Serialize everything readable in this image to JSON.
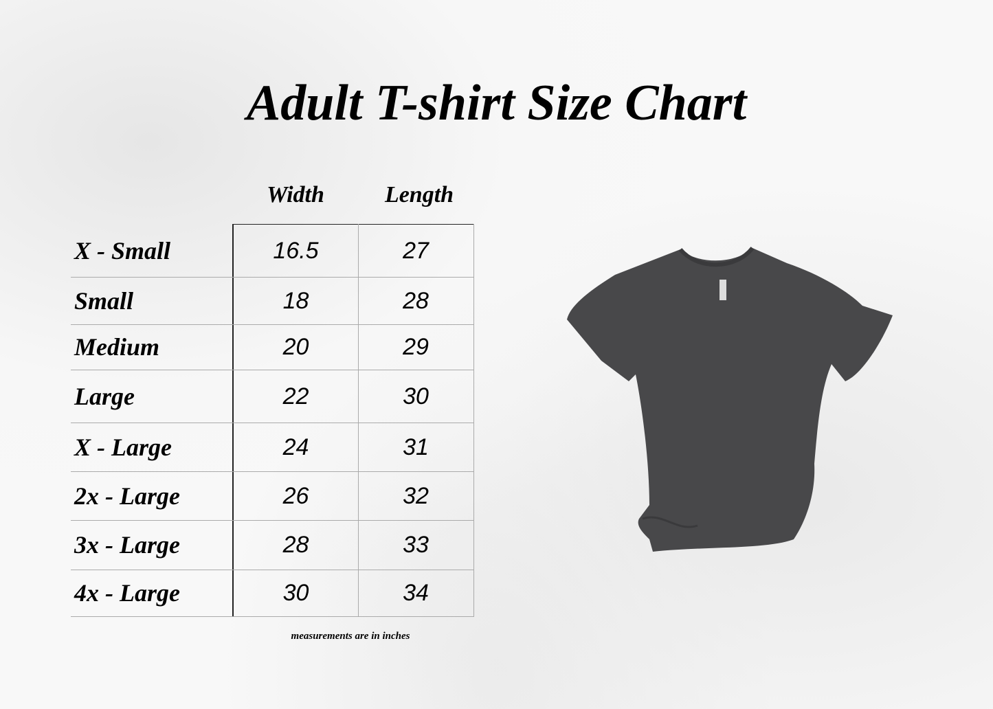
{
  "title": "Adult T-shirt Size Chart",
  "columns": [
    "Width",
    "Length"
  ],
  "rows": [
    {
      "size": "X - Small",
      "width": "16.5",
      "length": "27"
    },
    {
      "size": "Small",
      "width": "18",
      "length": "28"
    },
    {
      "size": "Medium",
      "width": "20",
      "length": "29"
    },
    {
      "size": "Large",
      "width": "22",
      "length": "30"
    },
    {
      "size": "X - Large",
      "width": "24",
      "length": "31"
    },
    {
      "size": "2x - Large",
      "width": "26",
      "length": "32"
    },
    {
      "size": "3x - Large",
      "width": "28",
      "length": "33"
    },
    {
      "size": "4x - Large",
      "width": "30",
      "length": "34"
    }
  ],
  "note": "measurements are in inches",
  "colors": {
    "shirt": "#48484a",
    "text": "#000000"
  }
}
